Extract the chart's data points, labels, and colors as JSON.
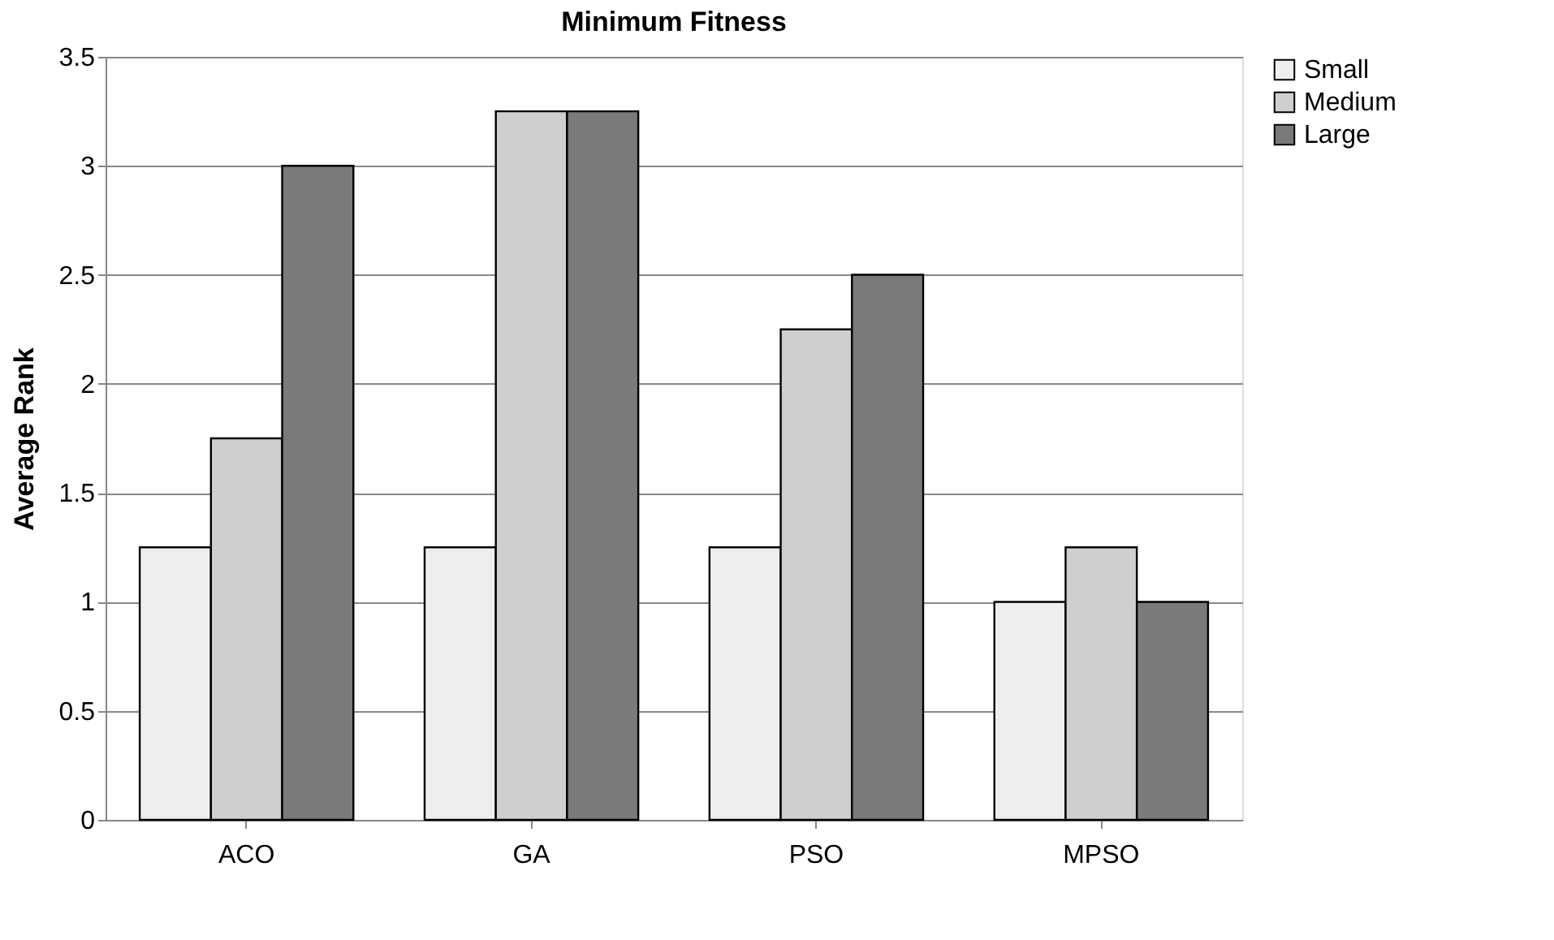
{
  "chart_data": {
    "type": "bar",
    "title": "Minimum Fitness",
    "ylabel": "Average Rank",
    "categories": [
      "ACO",
      "GA",
      "PSO",
      "MPSO"
    ],
    "series": [
      {
        "name": "Small",
        "color": "#eeeeee",
        "values": [
          1.25,
          1.25,
          1.25,
          1
        ]
      },
      {
        "name": "Medium",
        "color": "#cfcfcf",
        "values": [
          1.75,
          3.25,
          2.25,
          1.25
        ]
      },
      {
        "name": "Large",
        "color": "#7a7a7a",
        "values": [
          3,
          3.25,
          2.5,
          1
        ]
      }
    ],
    "ylim": [
      0,
      3.5
    ],
    "yticks": [
      0,
      0.5,
      1,
      1.5,
      2,
      2.5,
      3,
      3.5
    ],
    "grid": "y",
    "legend": "right"
  }
}
